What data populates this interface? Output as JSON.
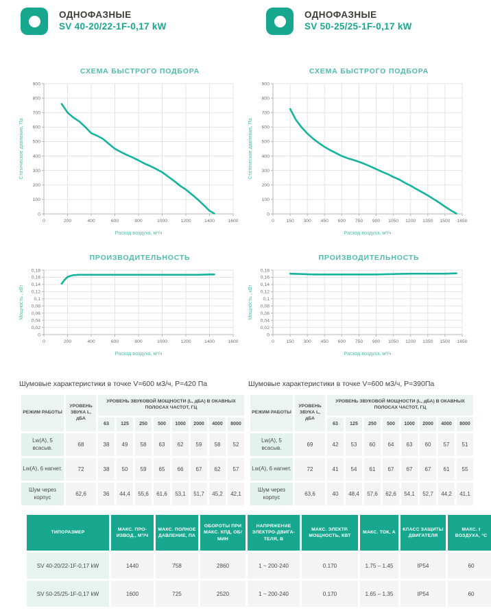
{
  "colors": {
    "accent_teal": "#17a78e",
    "chart_title_teal": "#4ebcaa",
    "curve_teal": "#14b39b",
    "tick_gray": "#707070",
    "grid_gray": "#e3e3e3",
    "mint_cell": "#e3f2ec",
    "gray_cell": "#f4f4f4",
    "header_mint": "#edf3f1"
  },
  "left": {
    "category": "ОДНОФАЗНЫЕ",
    "model": "SV 40-20/22-1F-0,17 kW",
    "icon": "rounded-square-with-circle",
    "noise_title": "Шумовые характеристики в точке V=600 м3/ч, P=420 Па"
  },
  "right": {
    "category": "ОДНОФАЗНЫЕ",
    "model": "SV 50-25/25-1F-0,17 kW",
    "icon": "rounded-square-with-circle",
    "noise_title": "Шумовые характеристики в точке V=600 м3/ч, P=390Па"
  },
  "chart_data": [
    {
      "type": "line",
      "title": "СХЕМА БЫСТРОГО ПОДБОРА",
      "xlabel": "Расход воздуха, м³/ч",
      "ylabel": "Статическое давление, Па",
      "xlim": [
        0,
        1600
      ],
      "ylim": [
        0,
        900
      ],
      "xticks": [
        0,
        200,
        400,
        600,
        800,
        1000,
        1200,
        1400,
        1600
      ],
      "yticks": [
        0,
        100,
        200,
        300,
        400,
        500,
        600,
        700,
        800,
        900
      ],
      "grid": true,
      "legend": "none",
      "series": [
        {
          "name": "SV 40-20/22-1F-0,17 kW",
          "points": [
            [
              150,
              760
            ],
            [
              200,
              700
            ],
            [
              250,
              665
            ],
            [
              300,
              638
            ],
            [
              350,
              600
            ],
            [
              400,
              558
            ],
            [
              450,
              540
            ],
            [
              500,
              518
            ],
            [
              550,
              483
            ],
            [
              600,
              450
            ],
            [
              650,
              428
            ],
            [
              700,
              408
            ],
            [
              750,
              390
            ],
            [
              800,
              370
            ],
            [
              850,
              348
            ],
            [
              900,
              330
            ],
            [
              950,
              310
            ],
            [
              1000,
              288
            ],
            [
              1050,
              258
            ],
            [
              1100,
              228
            ],
            [
              1150,
              195
            ],
            [
              1200,
              168
            ],
            [
              1250,
              135
            ],
            [
              1300,
              100
            ],
            [
              1350,
              62
            ],
            [
              1400,
              22
            ],
            [
              1440,
              3
            ]
          ]
        }
      ]
    },
    {
      "type": "line",
      "title": "СХЕМА БЫСТРОГО ПОДБОРА",
      "xlabel": "Расход воздуха, м³/ч",
      "ylabel": "Статическое давление, Па",
      "xlim": [
        0,
        1650
      ],
      "ylim": [
        0,
        900
      ],
      "xticks": [
        0,
        150,
        300,
        450,
        600,
        750,
        900,
        1050,
        1200,
        1350,
        1500,
        1650
      ],
      "yticks": [
        0,
        100,
        200,
        300,
        400,
        500,
        600,
        700,
        800,
        900
      ],
      "grid": true,
      "legend": "none",
      "series": [
        {
          "name": "SV 50-25/25-1F-0,17 kW",
          "points": [
            [
              150,
              725
            ],
            [
              200,
              650
            ],
            [
              250,
              598
            ],
            [
              300,
              555
            ],
            [
              350,
              520
            ],
            [
              400,
              490
            ],
            [
              450,
              463
            ],
            [
              500,
              440
            ],
            [
              550,
              420
            ],
            [
              600,
              400
            ],
            [
              650,
              385
            ],
            [
              700,
              373
            ],
            [
              750,
              360
            ],
            [
              800,
              345
            ],
            [
              850,
              328
            ],
            [
              900,
              310
            ],
            [
              950,
              292
            ],
            [
              1000,
              275
            ],
            [
              1050,
              255
            ],
            [
              1100,
              238
            ],
            [
              1150,
              215
            ],
            [
              1200,
              195
            ],
            [
              1250,
              172
            ],
            [
              1300,
              150
            ],
            [
              1350,
              128
            ],
            [
              1400,
              103
            ],
            [
              1450,
              78
            ],
            [
              1500,
              50
            ],
            [
              1550,
              25
            ],
            [
              1600,
              2
            ]
          ]
        }
      ]
    },
    {
      "type": "line",
      "title": "ПРОИЗВОДИТЕЛЬНОСТЬ",
      "xlabel": "Расход воздуха, м³/ч",
      "ylabel": "Мощность , кВт",
      "xlim": [
        0,
        1600
      ],
      "ylim": [
        0,
        0.18
      ],
      "xticks": [
        0,
        200,
        400,
        600,
        800,
        1000,
        1200,
        1400,
        1600
      ],
      "yticks": [
        0,
        0.02,
        0.04,
        0.06,
        0.08,
        0.1,
        0.12,
        0.14,
        0.16,
        0.18
      ],
      "grid": true,
      "legend": "none",
      "series": [
        {
          "name": "SV 40-20/22-1F-0,17 kW",
          "points": [
            [
              150,
              0.142
            ],
            [
              175,
              0.153
            ],
            [
              200,
              0.161
            ],
            [
              225,
              0.164
            ],
            [
              250,
              0.166
            ],
            [
              300,
              0.167
            ],
            [
              400,
              0.167
            ],
            [
              500,
              0.167
            ],
            [
              600,
              0.167
            ],
            [
              700,
              0.167
            ],
            [
              800,
              0.167
            ],
            [
              900,
              0.167
            ],
            [
              1000,
              0.167
            ],
            [
              1100,
              0.167
            ],
            [
              1200,
              0.167
            ],
            [
              1300,
              0.167
            ],
            [
              1400,
              0.168
            ],
            [
              1440,
              0.168
            ]
          ]
        }
      ]
    },
    {
      "type": "line",
      "title": "ПРОИЗВОДИТЕЛЬНОСТЬ",
      "xlabel": "Расход воздуха, м³/ч",
      "ylabel": "Мощность , кВт",
      "xlim": [
        0,
        1650
      ],
      "ylim": [
        0,
        0.18
      ],
      "xticks": [
        0,
        150,
        300,
        450,
        600,
        750,
        900,
        1050,
        1200,
        1350,
        1500,
        1650
      ],
      "yticks": [
        0,
        0.02,
        0.04,
        0.06,
        0.08,
        0.1,
        0.12,
        0.14,
        0.16,
        0.18
      ],
      "grid": true,
      "legend": "none",
      "series": [
        {
          "name": "SV 50-25/25-1F-0,17 kW",
          "points": [
            [
              150,
              0.17
            ],
            [
              250,
              0.169
            ],
            [
              350,
              0.168
            ],
            [
              450,
              0.168
            ],
            [
              600,
              0.168
            ],
            [
              750,
              0.168
            ],
            [
              900,
              0.168
            ],
            [
              1050,
              0.169
            ],
            [
              1200,
              0.17
            ],
            [
              1350,
              0.17
            ],
            [
              1500,
              0.17
            ],
            [
              1600,
              0.171
            ]
          ]
        }
      ]
    }
  ],
  "noise_table": {
    "col_mode": "РЕЖИМ РАБОТЫ",
    "col_level": "УРОВЕНЬ ЗВУКА L, дБА",
    "col_band": "УРОВЕНЬ ЗВУКОВОЙ МОЩНОСТИ (L, дБА) В ОКАВНЫХ ПОЛОСАХ ЧАСТОТ, ГЦ",
    "frequencies": [
      "63",
      "125",
      "250",
      "500",
      "1000",
      "2000",
      "4000",
      "8000"
    ],
    "left_rows": [
      {
        "mode": "Lw(A), 5 всасыв.",
        "level": "68",
        "values": [
          "38",
          "49",
          "58",
          "63",
          "62",
          "59",
          "58",
          "52"
        ]
      },
      {
        "mode": "Lw(A), 6 нагнет.",
        "level": "72",
        "values": [
          "38",
          "50",
          "59",
          "65",
          "66",
          "67",
          "62",
          "57"
        ]
      },
      {
        "mode": "Шум через корпус",
        "level": "62,6",
        "values": [
          "36",
          "44,4",
          "55,6",
          "61,6",
          "53,1",
          "51,7",
          "45,2",
          "42,1"
        ]
      }
    ],
    "right_rows": [
      {
        "mode": "Lw(A), 5 всасыв.",
        "level": "69",
        "values": [
          "42",
          "53",
          "60",
          "64",
          "63",
          "60",
          "57",
          "51"
        ]
      },
      {
        "mode": "Lw(A), 6 нагнет.",
        "level": "72",
        "values": [
          "41",
          "54",
          "61",
          "67",
          "67",
          "67",
          "61",
          "55"
        ]
      },
      {
        "mode": "Шум через корпус",
        "level": "63,6",
        "values": [
          "40",
          "48,4",
          "57,6",
          "62,6",
          "54,1",
          "52,7",
          "44,2",
          "41,1"
        ]
      }
    ]
  },
  "spec_table": {
    "headers": [
      "ТИПОРАЗМЕР",
      "МАКС. ПРО-ИЗВОД., М³/Ч",
      "МАКС. ПОЛНОЕ ДАВЛЕНИЕ, ПА",
      "ОБОРОТЫ ПРИ МАКС. КПД, ОБ/МИН",
      "НАПРЯЖЕНИЕ ЭЛЕКТРО-ДВИГА-ТЕЛЯ, В",
      "МАКС. ЭЛЕКТР. МОЩНОСТЬ, КВТ",
      "МАКС. ТОК, А",
      "КЛАСС ЗАЩИТЫ ДВИГАТЕЛЯ",
      "МАКС. t ВОЗДУХА, °С"
    ],
    "rows": [
      [
        "SV 40-20/22-1F-0,17 kW",
        "1440",
        "758",
        "2860",
        "1 ~ 200-240",
        "0.170",
        "1.75 – 1.45",
        "IP54",
        "60"
      ],
      [
        "SV 50-25/25-1F-0,17 kW",
        "1600",
        "725",
        "2520",
        "1 ~ 200-240",
        "0.170",
        "1.65 – 1.35",
        "IP54",
        "60"
      ]
    ]
  }
}
